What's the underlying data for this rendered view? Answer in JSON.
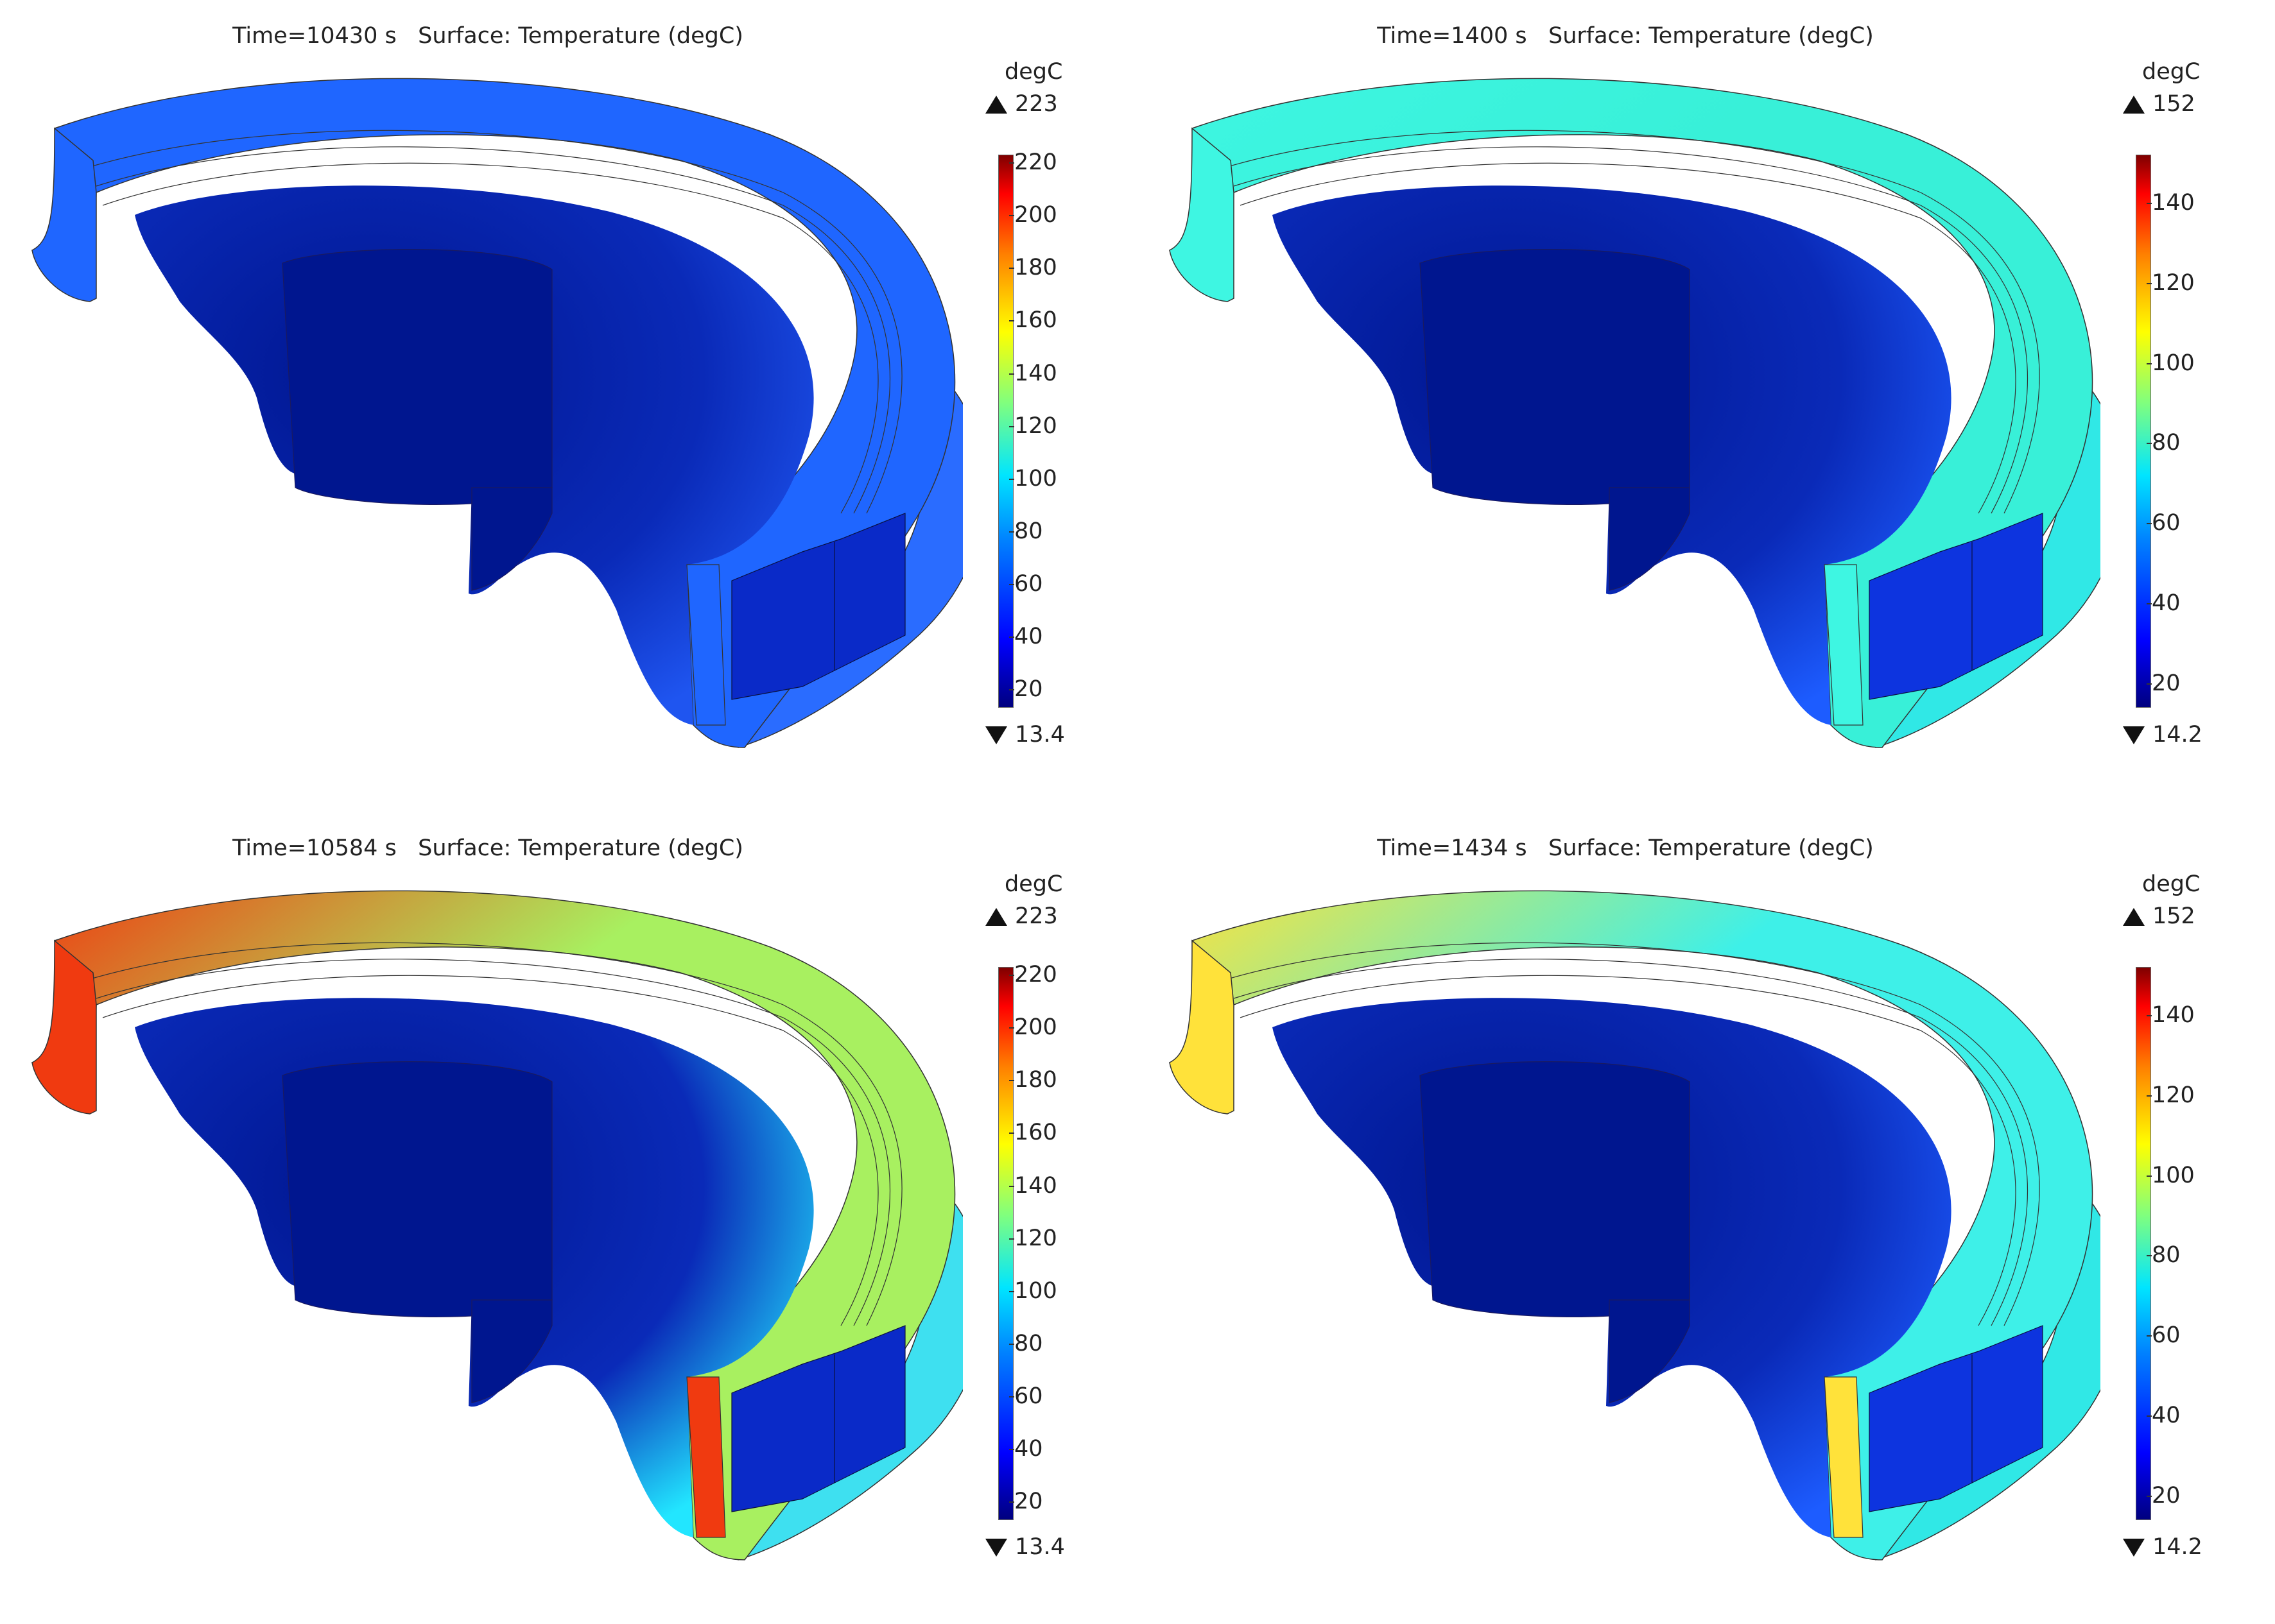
{
  "panels": [
    {
      "title": "Time=10430 s   Surface: Temperature (degC)",
      "unit": "degC",
      "max_label": "223",
      "min_label": "13.4",
      "range": [
        13.4,
        223
      ],
      "ticks": [
        "20",
        "40",
        "60",
        "80",
        "100",
        "120",
        "140",
        "160",
        "180",
        "200",
        "220"
      ],
      "colors": {
        "outer_ring": "#1f66ff",
        "outer_edge": "#1f66ff",
        "inner_grad": "#1f55f0",
        "side_face": "#2a6cff",
        "hub": "#00168f",
        "block": "#0a2ac8"
      }
    },
    {
      "title": "Time=1400 s   Surface: Temperature (degC)",
      "unit": "degC",
      "max_label": "152",
      "min_label": "14.2",
      "range": [
        14.2,
        152
      ],
      "ticks": [
        "20",
        "40",
        "60",
        "80",
        "100",
        "120",
        "140"
      ],
      "colors": {
        "outer_ring": "#38f0d8",
        "outer_edge": "#3ef6e2",
        "inner_grad": "#1d5cff",
        "side_face": "#30e8e6",
        "hub": "#00168f",
        "block": "#0d34df"
      }
    },
    {
      "title": "Time=10584 s   Surface: Temperature (degC)",
      "unit": "degC",
      "max_label": "223",
      "min_label": "13.4",
      "range": [
        13.4,
        223
      ],
      "ticks": [
        "20",
        "40",
        "60",
        "80",
        "100",
        "120",
        "140",
        "160",
        "180",
        "200",
        "220"
      ],
      "colors": {
        "outer_ring": "#a8f060",
        "outer_edge": "#f03a10",
        "inner_grad": "#22e6ff",
        "side_face": "#3ee0f0",
        "hub": "#00168f",
        "block": "#0a2ac8"
      }
    },
    {
      "title": "Time=1434 s   Surface: Temperature (degC)",
      "unit": "degC",
      "max_label": "152",
      "min_label": "14.2",
      "range": [
        14.2,
        152
      ],
      "ticks": [
        "20",
        "40",
        "60",
        "80",
        "100",
        "120",
        "140"
      ],
      "colors": {
        "outer_ring": "#3ef0e8",
        "outer_edge": "#ffe23a",
        "inner_grad": "#1d5cff",
        "side_face": "#30e8e6",
        "hub": "#00168f",
        "block": "#0d34df"
      }
    }
  ]
}
